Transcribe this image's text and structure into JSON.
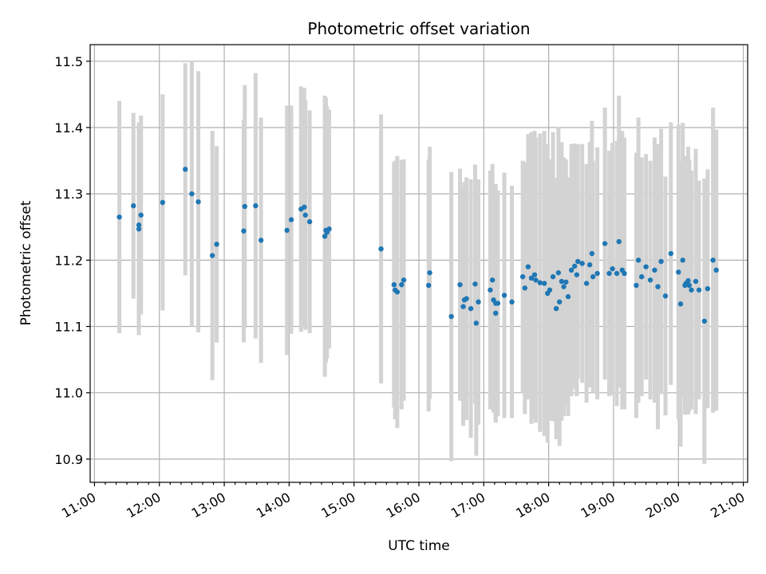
{
  "chart_data": {
    "type": "scatter",
    "title": "Photometric offset variation",
    "xlabel": "UTC time",
    "ylabel": "Photometric offset",
    "xlim": [
      "10:56",
      "21:04"
    ],
    "ylim": [
      10.865,
      11.525
    ],
    "x_ticks": [
      "11:00",
      "12:00",
      "13:00",
      "14:00",
      "15:00",
      "16:00",
      "17:00",
      "18:00",
      "19:00",
      "20:00",
      "21:00"
    ],
    "y_ticks": [
      "10.9",
      "11.0",
      "11.1",
      "11.2",
      "11.3",
      "11.4",
      "11.5"
    ],
    "grid": true,
    "legend": "none",
    "marker_color": "#1f77b4",
    "errorbar_color": "#d3d3d3",
    "series": [
      {
        "points": [
          [
            "11:23",
            11.265,
            0.175
          ],
          [
            "11:36",
            11.282,
            0.14
          ],
          [
            "11:41",
            11.253,
            0.155
          ],
          [
            "11:41",
            11.247,
            0.16
          ],
          [
            "11:43",
            11.268,
            0.15
          ],
          [
            "12:03",
            11.287,
            0.163
          ],
          [
            "12:24",
            11.337,
            0.16
          ],
          [
            "12:30",
            11.3,
            0.2
          ],
          [
            "12:36",
            11.288,
            0.197
          ],
          [
            "12:49",
            11.207,
            0.188
          ],
          [
            "12:53",
            11.224,
            0.148
          ],
          [
            "13:18",
            11.244,
            0.168
          ],
          [
            "13:19",
            11.281,
            0.183
          ],
          [
            "13:29",
            11.282,
            0.2
          ],
          [
            "13:34",
            11.23,
            0.185
          ],
          [
            "13:58",
            11.245,
            0.188
          ],
          [
            "14:02",
            11.261,
            0.172
          ],
          [
            "14:11",
            11.277,
            0.185
          ],
          [
            "14:14",
            11.28,
            0.18
          ],
          [
            "14:15",
            11.268,
            0.173
          ],
          [
            "14:19",
            11.258,
            0.168
          ],
          [
            "14:33",
            11.236,
            0.212
          ],
          [
            "14:34",
            11.245,
            0.2
          ],
          [
            "14:35",
            11.242,
            0.19
          ],
          [
            "14:37",
            11.247,
            0.18
          ],
          [
            "15:25",
            11.217,
            0.203
          ],
          [
            "15:37",
            11.163,
            0.185
          ],
          [
            "15:38",
            11.155,
            0.195
          ],
          [
            "15:40",
            11.152,
            0.205
          ],
          [
            "15:44",
            11.163,
            0.188
          ],
          [
            "15:46",
            11.17,
            0.182
          ],
          [
            "16:09",
            11.162,
            0.19
          ],
          [
            "16:10",
            11.181,
            0.19
          ],
          [
            "16:30",
            11.115,
            0.218
          ],
          [
            "16:38",
            11.163,
            0.175
          ],
          [
            "16:41",
            11.13,
            0.18
          ],
          [
            "16:42",
            11.14,
            0.178
          ],
          [
            "16:44",
            11.142,
            0.183
          ],
          [
            "16:48",
            11.127,
            0.195
          ],
          [
            "16:52",
            11.164,
            0.18
          ],
          [
            "16:53",
            11.105,
            0.2
          ],
          [
            "16:55",
            11.137,
            0.185
          ],
          [
            "17:06",
            11.155,
            0.18
          ],
          [
            "17:08",
            11.17,
            0.175
          ],
          [
            "17:09",
            11.14,
            0.17
          ],
          [
            "17:11",
            11.135,
            0.18
          ],
          [
            "17:11",
            11.12,
            0.165
          ],
          [
            "17:13",
            11.135,
            0.17
          ],
          [
            "17:19",
            11.147,
            0.185
          ],
          [
            "17:26",
            11.137,
            0.175
          ],
          [
            "17:36",
            11.175,
            0.175
          ],
          [
            "17:38",
            11.158,
            0.19
          ],
          [
            "17:41",
            11.19,
            0.2
          ],
          [
            "17:44",
            11.173,
            0.22
          ],
          [
            "17:47",
            11.178,
            0.217
          ],
          [
            "17:48",
            11.17,
            0.215
          ],
          [
            "17:52",
            11.166,
            0.225
          ],
          [
            "17:56",
            11.165,
            0.23
          ],
          [
            "17:59",
            11.15,
            0.225
          ],
          [
            "18:01",
            11.155,
            0.197
          ],
          [
            "18:04",
            11.175,
            0.218
          ],
          [
            "18:07",
            11.127,
            0.197
          ],
          [
            "18:09",
            11.181,
            0.22
          ],
          [
            "18:10",
            11.137,
            0.217
          ],
          [
            "18:12",
            11.168,
            0.21
          ],
          [
            "18:14",
            11.16,
            0.195
          ],
          [
            "18:16",
            11.167,
            0.185
          ],
          [
            "18:18",
            11.145,
            0.18
          ],
          [
            "18:21",
            11.185,
            0.19
          ],
          [
            "18:24",
            11.191,
            0.185
          ],
          [
            "18:26",
            11.178,
            0.183
          ],
          [
            "18:27",
            11.198,
            0.177
          ],
          [
            "18:31",
            11.195,
            0.18
          ],
          [
            "18:35",
            11.165,
            0.18
          ],
          [
            "18:38",
            11.193,
            0.185
          ],
          [
            "18:40",
            11.21,
            0.2
          ],
          [
            "18:41",
            11.175,
            0.175
          ],
          [
            "18:45",
            11.18,
            0.19
          ],
          [
            "18:52",
            11.225,
            0.205
          ],
          [
            "18:56",
            11.18,
            0.185
          ],
          [
            "18:59",
            11.187,
            0.19
          ],
          [
            "19:03",
            11.18,
            0.2
          ],
          [
            "19:05",
            11.228,
            0.22
          ],
          [
            "19:08",
            11.185,
            0.21
          ],
          [
            "19:10",
            11.18,
            0.205
          ],
          [
            "19:21",
            11.162,
            0.2
          ],
          [
            "19:23",
            11.2,
            0.215
          ],
          [
            "19:26",
            11.175,
            0.18
          ],
          [
            "19:30",
            11.19,
            0.17
          ],
          [
            "19:34",
            11.17,
            0.18
          ],
          [
            "19:38",
            11.185,
            0.2
          ],
          [
            "19:41",
            11.16,
            0.215
          ],
          [
            "19:44",
            11.198,
            0.2
          ],
          [
            "19:48",
            11.146,
            0.18
          ],
          [
            "19:53",
            11.21,
            0.198
          ],
          [
            "20:00",
            11.182,
            0.222
          ],
          [
            "20:02",
            11.134,
            0.215
          ],
          [
            "20:04",
            11.2,
            0.207
          ],
          [
            "20:06",
            11.162,
            0.195
          ],
          [
            "20:07",
            11.165,
            0.18
          ],
          [
            "20:09",
            11.169,
            0.202
          ],
          [
            "20:10",
            11.162,
            0.19
          ],
          [
            "20:12",
            11.155,
            0.18
          ],
          [
            "20:16",
            11.168,
            0.2
          ],
          [
            "20:19",
            11.155,
            0.165
          ],
          [
            "20:24",
            11.108,
            0.215
          ],
          [
            "20:27",
            11.157,
            0.18
          ],
          [
            "20:32",
            11.2,
            0.23
          ],
          [
            "20:35",
            11.185,
            0.212
          ]
        ]
      }
    ]
  }
}
